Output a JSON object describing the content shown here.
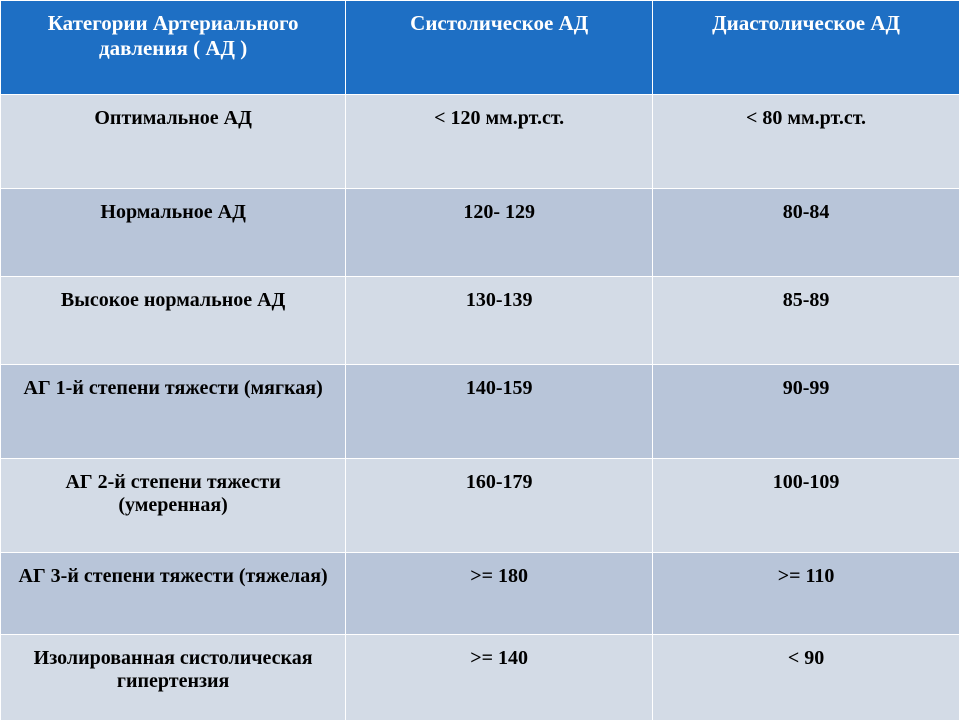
{
  "table": {
    "header_bg": "#1e6fc4",
    "header_text_color": "#ffffff",
    "row_light_bg": "#d3dbe6",
    "row_dark_bg": "#b8c5d9",
    "border_color": "#ffffff",
    "cell_text_color": "#000000",
    "font_family": "Times New Roman",
    "header_fontsize": 21,
    "cell_fontsize": 20,
    "font_weight": "bold",
    "column_widths_pct": [
      36,
      32,
      32
    ],
    "columns": [
      "Категории Артериального давления ( АД )",
      "Систолическое  АД",
      "Диастолическое  АД"
    ],
    "rows": [
      {
        "shade": "light",
        "category": "Оптимальное  АД",
        "systolic": "< 120 мм.рт.ст.",
        "diastolic": "< 80 мм.рт.ст."
      },
      {
        "shade": "dark",
        "category": "Нормальное  АД",
        "systolic": "120- 129",
        "diastolic": "80-84"
      },
      {
        "shade": "light",
        "category": "Высокое нормальное  АД",
        "systolic": "130-139",
        "diastolic": "85-89"
      },
      {
        "shade": "dark",
        "category": "АГ 1-й степени тяжести (мягкая)",
        "systolic": "140-159",
        "diastolic": "90-99"
      },
      {
        "shade": "light",
        "category": "АГ 2-й степени тяжести (умеренная)",
        "systolic": "160-179",
        "diastolic": "100-109"
      },
      {
        "shade": "dark",
        "category": "АГ 3-й степени тяжести (тяжелая)",
        "systolic": ">= 180",
        "diastolic": ">= 110"
      },
      {
        "shade": "light",
        "category": "Изолированная систолическая гипертензия",
        "systolic": ">= 140",
        "diastolic": "< 90"
      }
    ]
  }
}
